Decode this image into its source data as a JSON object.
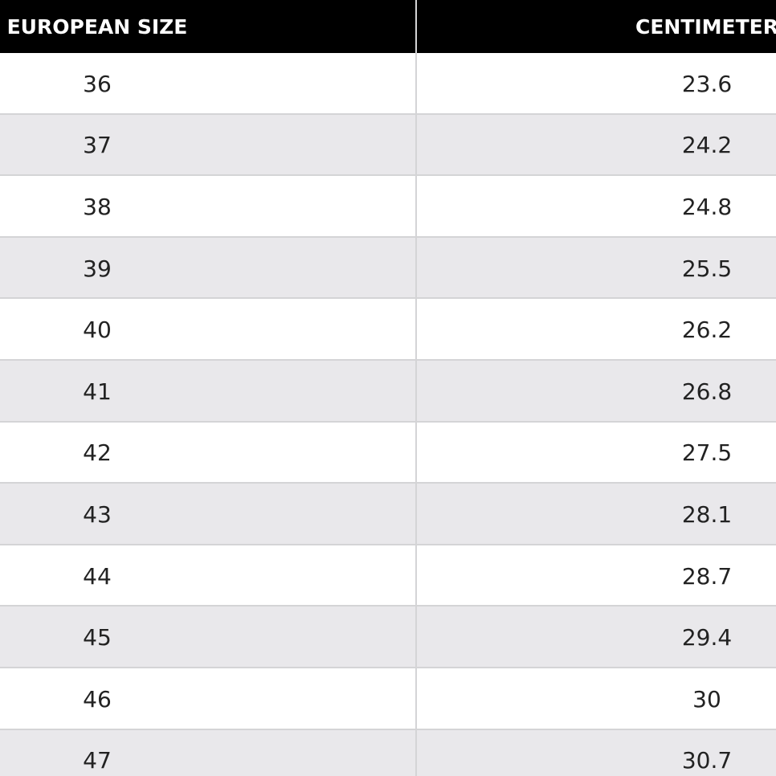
{
  "table": {
    "header": [
      "EUROPEAN SIZE",
      "CENTIMETER"
    ],
    "rows": [
      [
        "36",
        "23.6"
      ],
      [
        "37",
        "24.2"
      ],
      [
        "38",
        "24.8"
      ],
      [
        "39",
        "25.5"
      ],
      [
        "40",
        "26.2"
      ],
      [
        "41",
        "26.8"
      ],
      [
        "42",
        "27.5"
      ],
      [
        "43",
        "28.1"
      ],
      [
        "44",
        "28.7"
      ],
      [
        "45",
        "29.4"
      ],
      [
        "46",
        "30"
      ],
      [
        "47",
        "30.7"
      ]
    ]
  }
}
